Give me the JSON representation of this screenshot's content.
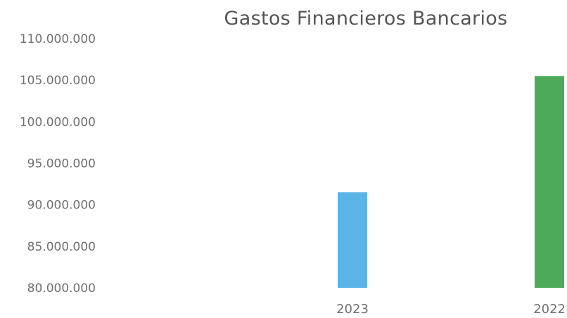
{
  "chart_data": {
    "type": "bar",
    "title": "Gastos Financieros Bancarios",
    "categories": [
      "2023",
      "2022"
    ],
    "values": [
      91500000,
      105500000
    ],
    "colors": [
      "#5ab4e8",
      "#4daa5a"
    ],
    "ylim": [
      80000000,
      110000000
    ],
    "yticks": [
      "80.000.000",
      "85.000.000",
      "90.000.000",
      "95.000.000",
      "100.000.000",
      "105.000.000",
      "110.000.000"
    ],
    "ytick_values": [
      80000000,
      85000000,
      90000000,
      95000000,
      100000000,
      105000000,
      110000000
    ],
    "grid": false,
    "legend": "none"
  }
}
